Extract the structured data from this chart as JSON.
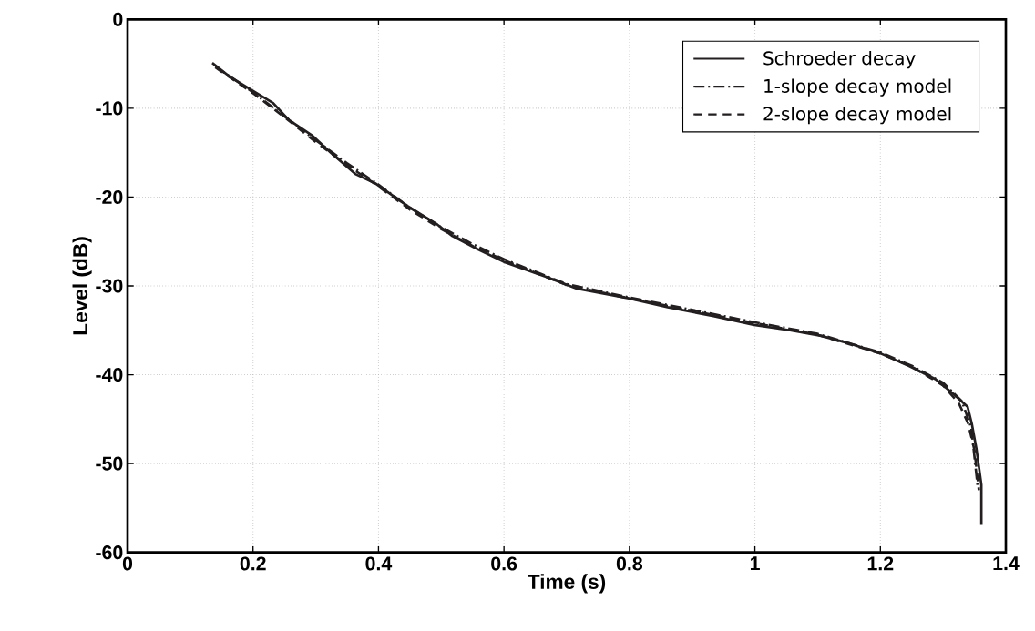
{
  "chart_data": {
    "type": "line",
    "xlabel": "Time (s)",
    "ylabel": "Level (dB)",
    "xlim": [
      0,
      1.4
    ],
    "ylim": [
      -60,
      0
    ],
    "xticks": [
      0,
      0.2,
      0.4,
      0.6,
      0.8,
      1,
      1.2,
      1.4
    ],
    "yticks": [
      -60,
      -50,
      -40,
      -30,
      -20,
      -10,
      0
    ],
    "grid": true,
    "legend": "top right",
    "marker": "none",
    "series": [
      {
        "name": "Schroeder decay",
        "color": "#231f20",
        "line_style": "solid",
        "x": [
          0.135,
          0.164,
          0.199,
          0.232,
          0.257,
          0.295,
          0.324,
          0.363,
          0.396,
          0.446,
          0.494,
          0.518,
          0.556,
          0.6,
          0.668,
          0.716,
          0.799,
          0.861,
          0.934,
          0.999,
          1.056,
          1.104,
          1.152,
          1.2,
          1.245,
          1.288,
          1.317,
          1.339,
          1.346,
          1.353,
          1.361,
          1.361
        ],
        "values": [
          -4.9,
          -6.5,
          -8.0,
          -9.4,
          -11.3,
          -13.1,
          -15.0,
          -17.4,
          -18.5,
          -21.0,
          -23.1,
          -24.4,
          -25.8,
          -27.3,
          -29.0,
          -30.3,
          -31.4,
          -32.4,
          -33.4,
          -34.4,
          -35.0,
          -35.6,
          -36.5,
          -37.6,
          -39.0,
          -40.5,
          -42.2,
          -43.6,
          -45.6,
          -48.3,
          -52.4,
          -56.9
        ]
      },
      {
        "name": "1-slope decay model",
        "color": "#231f20",
        "line_style": "dashdot",
        "x": [
          0.14,
          0.2,
          0.25,
          0.3,
          0.35,
          0.4,
          0.45,
          0.5,
          0.55,
          0.6,
          0.7,
          0.8,
          0.9,
          1.0,
          1.1,
          1.2,
          1.25,
          1.3,
          1.33,
          1.345,
          1.355
        ],
        "values": [
          -5.3,
          -8.2,
          -10.9,
          -13.6,
          -16.2,
          -18.6,
          -21.2,
          -23.4,
          -25.3,
          -27.0,
          -29.8,
          -31.3,
          -32.7,
          -34.1,
          -35.4,
          -37.5,
          -39.0,
          -40.9,
          -43.0,
          -46.0,
          -52.5
        ]
      },
      {
        "name": "2-slope decay model",
        "color": "#231f20",
        "line_style": "dashed",
        "x": [
          0.14,
          0.2,
          0.25,
          0.3,
          0.35,
          0.4,
          0.45,
          0.5,
          0.55,
          0.6,
          0.7,
          0.8,
          0.9,
          1.0,
          1.1,
          1.2,
          1.25,
          1.3,
          1.325,
          1.34,
          1.35,
          1.357
        ],
        "values": [
          -5.4,
          -8.3,
          -11.0,
          -13.8,
          -16.4,
          -18.8,
          -21.4,
          -23.6,
          -25.5,
          -27.1,
          -29.9,
          -31.4,
          -32.8,
          -34.2,
          -35.5,
          -37.6,
          -39.1,
          -41.2,
          -43.2,
          -45.5,
          -48.5,
          -53.0
        ]
      }
    ]
  }
}
